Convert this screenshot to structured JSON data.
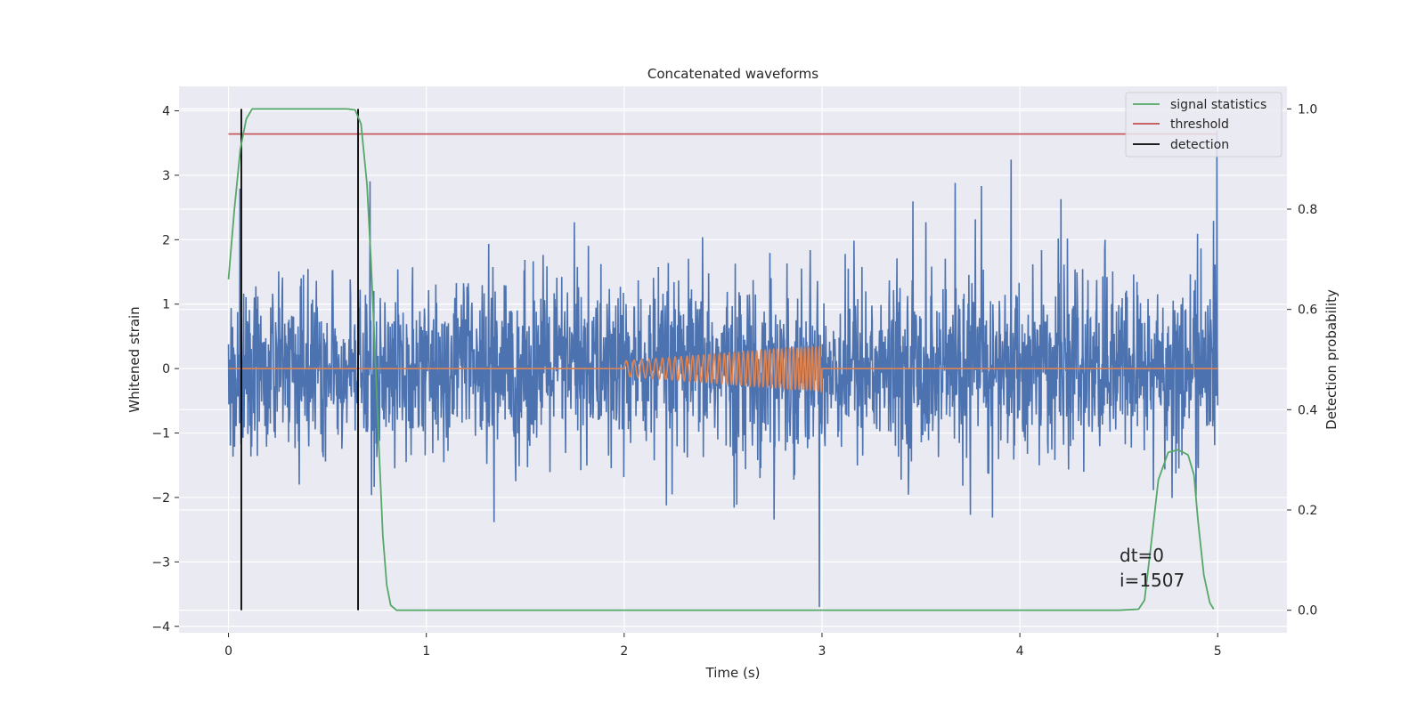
{
  "chart_data": {
    "type": "line",
    "title": "Concatenated waveforms",
    "xlabel": "Time (s)",
    "ylabel_left": "Whitened strain",
    "ylabel_right": "Detection probability",
    "xlim": [
      -0.25,
      5.35
    ],
    "ylim_left": [
      -4.1,
      4.38
    ],
    "ylim_right": [
      -0.045,
      1.045
    ],
    "x_ticks": [
      0,
      1,
      2,
      3,
      4,
      5
    ],
    "x_tick_labels": [
      "0",
      "1",
      "2",
      "3",
      "4",
      "5"
    ],
    "y_left_ticks": [
      -4,
      -3,
      -2,
      -1,
      0,
      1,
      2,
      3,
      4
    ],
    "y_left_tick_labels": [
      "−4",
      "−3",
      "−2",
      "−1",
      "0",
      "1",
      "2",
      "3",
      "4"
    ],
    "y_right_ticks": [
      0.0,
      0.2,
      0.4,
      0.6,
      0.8,
      1.0
    ],
    "y_right_tick_labels": [
      "0.0",
      "0.2",
      "0.4",
      "0.6",
      "0.8",
      "1.0"
    ],
    "grid": true,
    "legend_position": "top-right",
    "series": [
      {
        "name": "signal statistics",
        "axis": "right",
        "color": "#55a868",
        "x": [
          0.0,
          0.03,
          0.06,
          0.09,
          0.12,
          0.15,
          0.2,
          0.3,
          0.4,
          0.5,
          0.6,
          0.64,
          0.67,
          0.7,
          0.72,
          0.74,
          0.76,
          0.78,
          0.8,
          0.82,
          0.85,
          0.9,
          1.0,
          2.0,
          3.0,
          4.0,
          4.5,
          4.6,
          4.63,
          4.66,
          4.7,
          4.75,
          4.8,
          4.85,
          4.88,
          4.9,
          4.93,
          4.96,
          4.98
        ],
        "y": [
          0.66,
          0.8,
          0.92,
          0.98,
          1.0,
          1.0,
          1.0,
          1.0,
          1.0,
          1.0,
          1.0,
          0.998,
          0.97,
          0.85,
          0.7,
          0.52,
          0.33,
          0.15,
          0.05,
          0.01,
          0.0,
          0.0,
          0.0,
          0.0,
          0.0,
          0.0,
          0.0,
          0.002,
          0.02,
          0.12,
          0.26,
          0.315,
          0.32,
          0.31,
          0.27,
          0.18,
          0.07,
          0.015,
          0.002
        ]
      },
      {
        "name": "threshold",
        "axis": "right",
        "color": "#c44e52",
        "x": [
          0.0,
          5.0
        ],
        "y": [
          0.95,
          0.95
        ]
      },
      {
        "name": "detection",
        "axis": "right",
        "color": "#000000",
        "x": [
          0.065,
          0.655
        ],
        "y_range": [
          0.0,
          1.0
        ]
      },
      {
        "name": "",
        "axis": "left",
        "color": "#4c72b0",
        "description_values": {
          "x_range": [
            0.0,
            5.0
          ],
          "amplitude_std": 0.65,
          "min": -3.7,
          "max": 3.7
        }
      },
      {
        "name": "",
        "axis": "left",
        "color": "#dd8452",
        "x_range": [
          0.0,
          5.0
        ],
        "chirp_x_range": [
          2.0,
          3.0
        ],
        "chirp_amplitude_range": [
          0.12,
          0.35
        ],
        "chirp_cycles": 40
      }
    ],
    "annotations": [
      "dt=0",
      "i=1507"
    ]
  }
}
